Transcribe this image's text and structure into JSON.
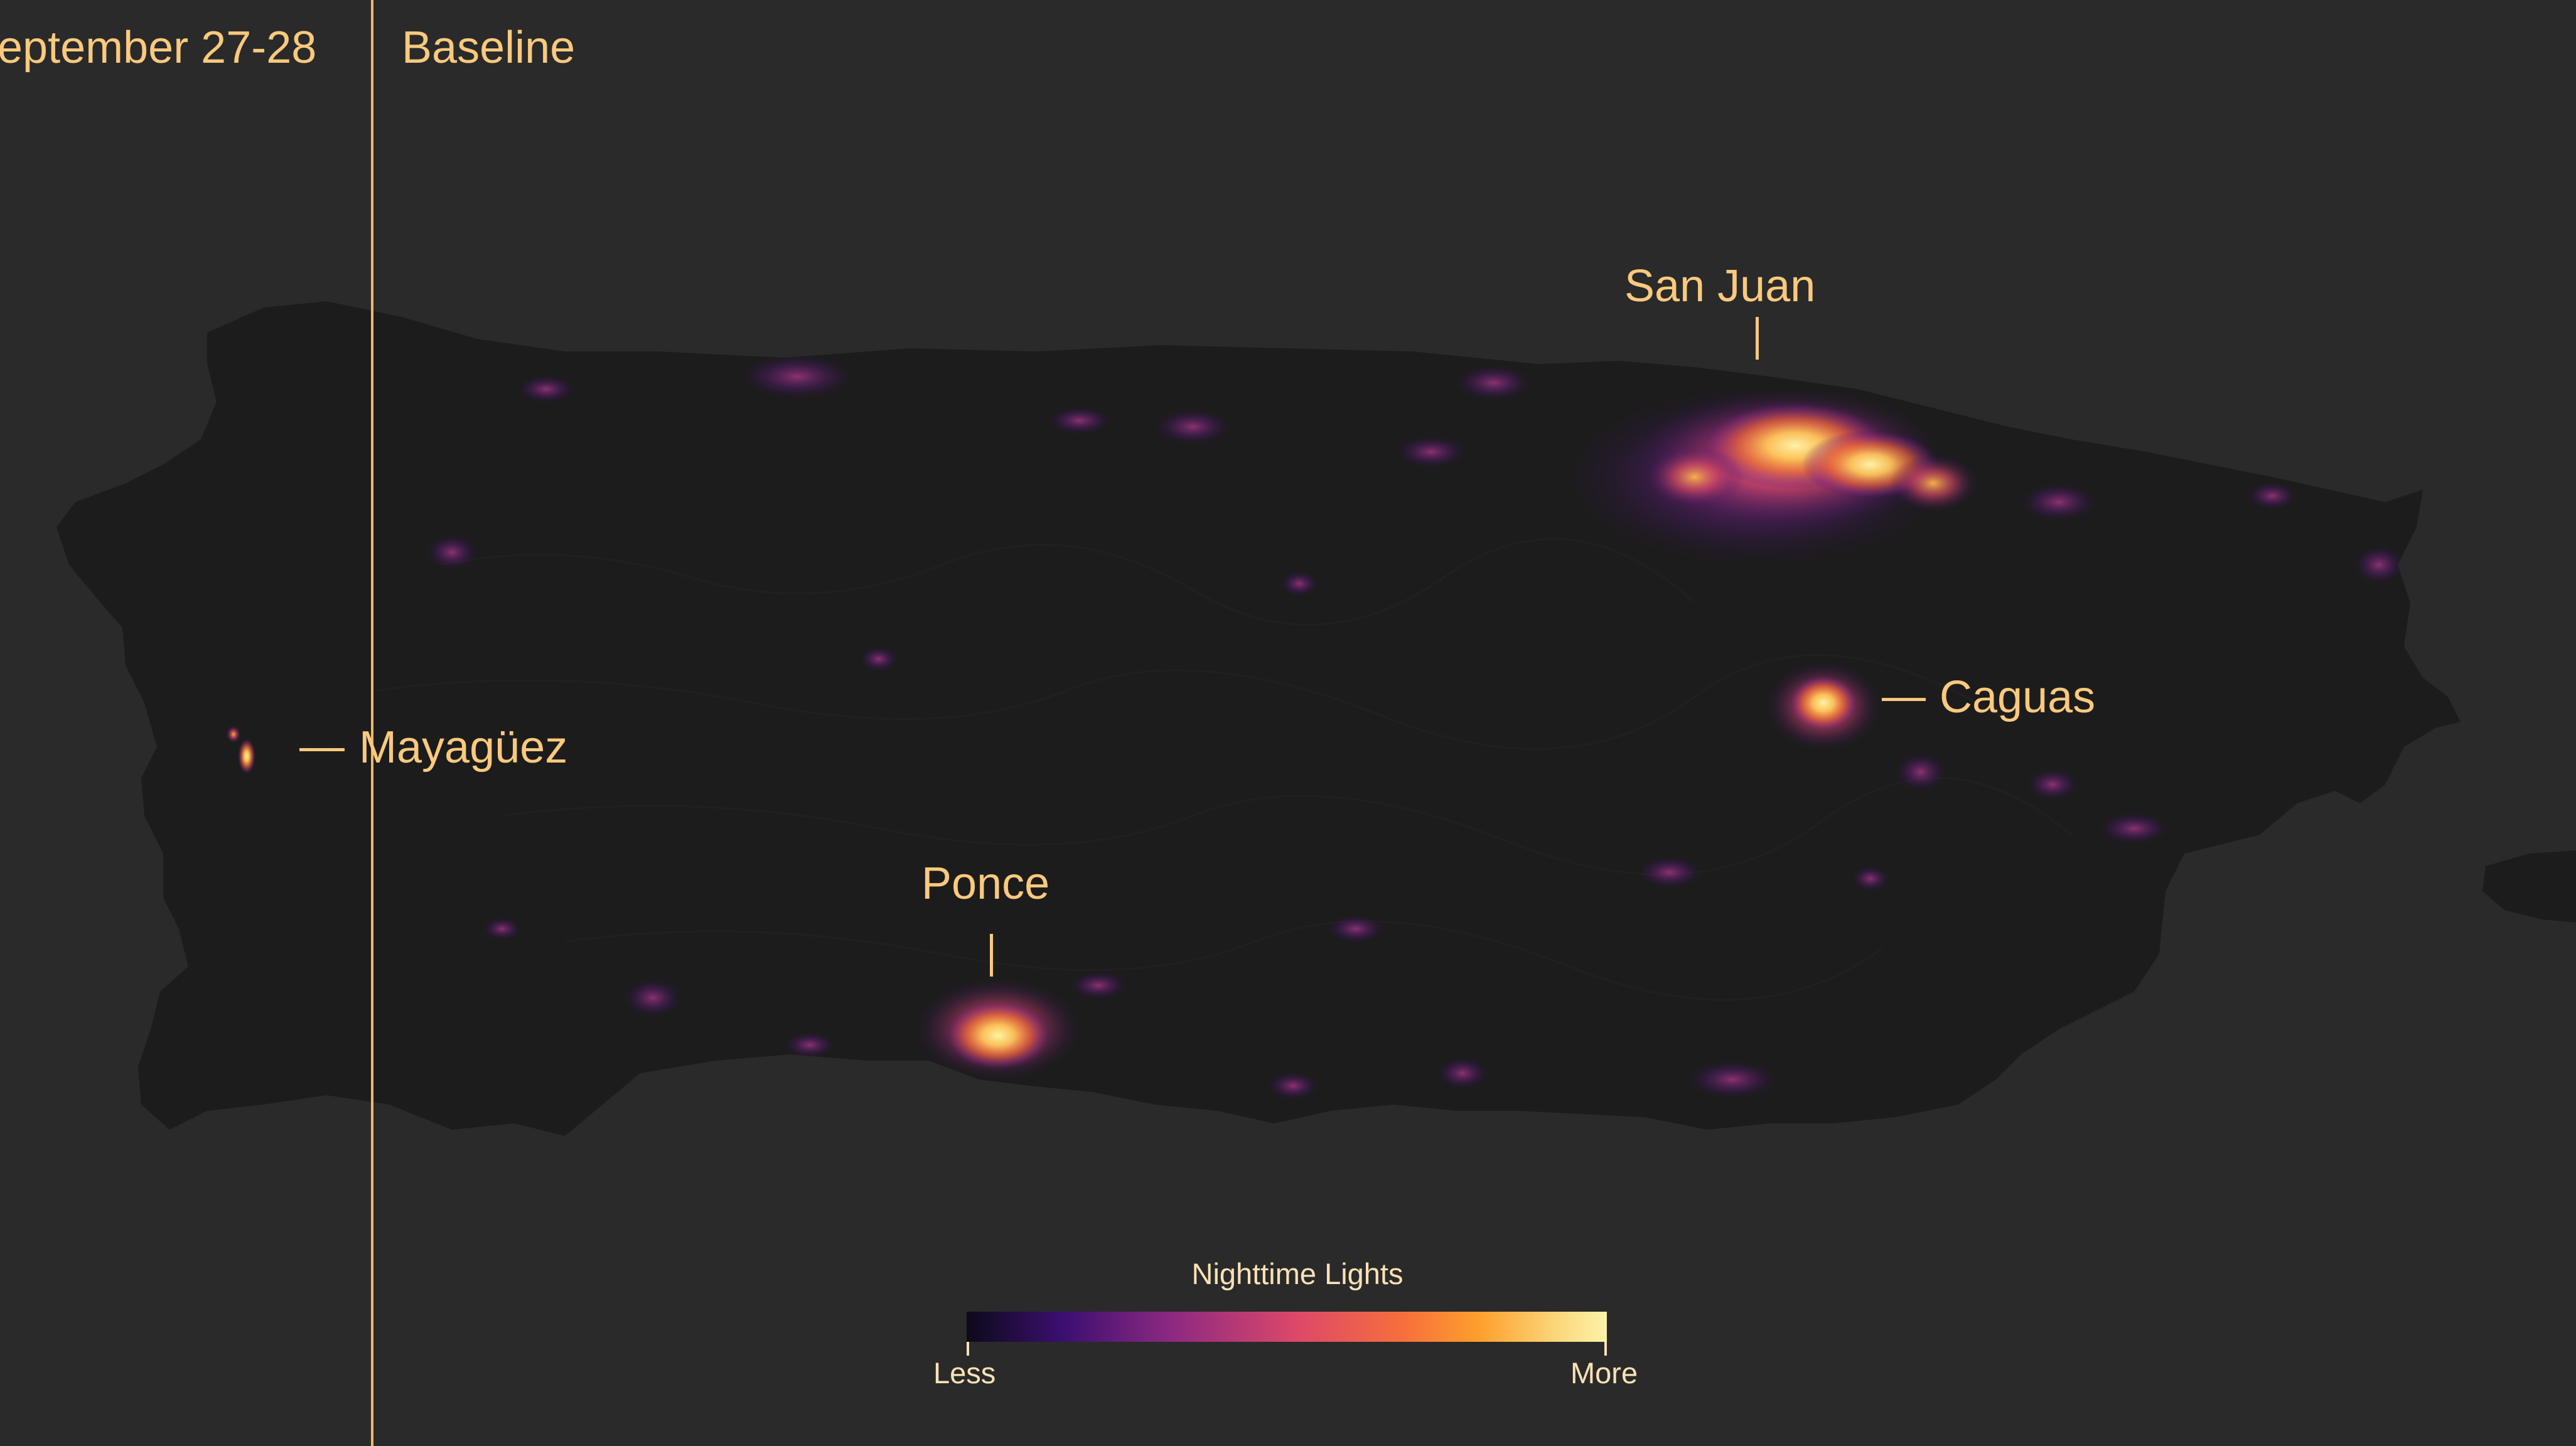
{
  "header": {
    "left_label": "eptember 27-28",
    "right_label": "Baseline"
  },
  "cities": {
    "san_juan": "San Juan",
    "caguas": "Caguas",
    "mayaguez": "Mayagüez",
    "ponce": "Ponce"
  },
  "legend": {
    "title": "Nighttime Lights",
    "low_label": "Less",
    "high_label": "More",
    "gradient_colors": [
      "#0d0a1a",
      "#3b0f70",
      "#8c2981",
      "#de4968",
      "#f66e3c",
      "#fe9f2c",
      "#fbd67a",
      "#fcf3a8"
    ]
  },
  "colors": {
    "background": "#2a2a2a",
    "land": "#1d1c1c",
    "label": "#f9c97d",
    "divider": "#f0b865"
  }
}
